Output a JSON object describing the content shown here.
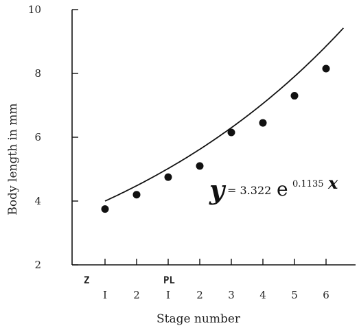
{
  "chart_data": {
    "type": "scatter",
    "title": "",
    "xlabel": "Stage number",
    "ylabel": "Body length in mm",
    "ylim": [
      2,
      10
    ],
    "y_ticks": [
      "2",
      "4",
      "6",
      "8",
      "10"
    ],
    "x_groups": [
      {
        "label": "Z",
        "stages": [
          "I",
          "2"
        ]
      },
      {
        "label": "PL",
        "stages": [
          "I",
          "2",
          "3",
          "4",
          "5",
          "6"
        ]
      }
    ],
    "x": [
      1,
      2,
      3,
      4,
      5,
      6,
      7,
      8
    ],
    "y": [
      3.75,
      4.2,
      4.75,
      5.1,
      6.15,
      6.45,
      7.3,
      8.15
    ],
    "fit": {
      "equation_lhs": "y",
      "equation_coef": "= 3.322",
      "equation_base": "e",
      "equation_exp": "0.1135",
      "equation_var": "x",
      "a": 3.322,
      "b": 0.1135
    },
    "grid": false
  }
}
